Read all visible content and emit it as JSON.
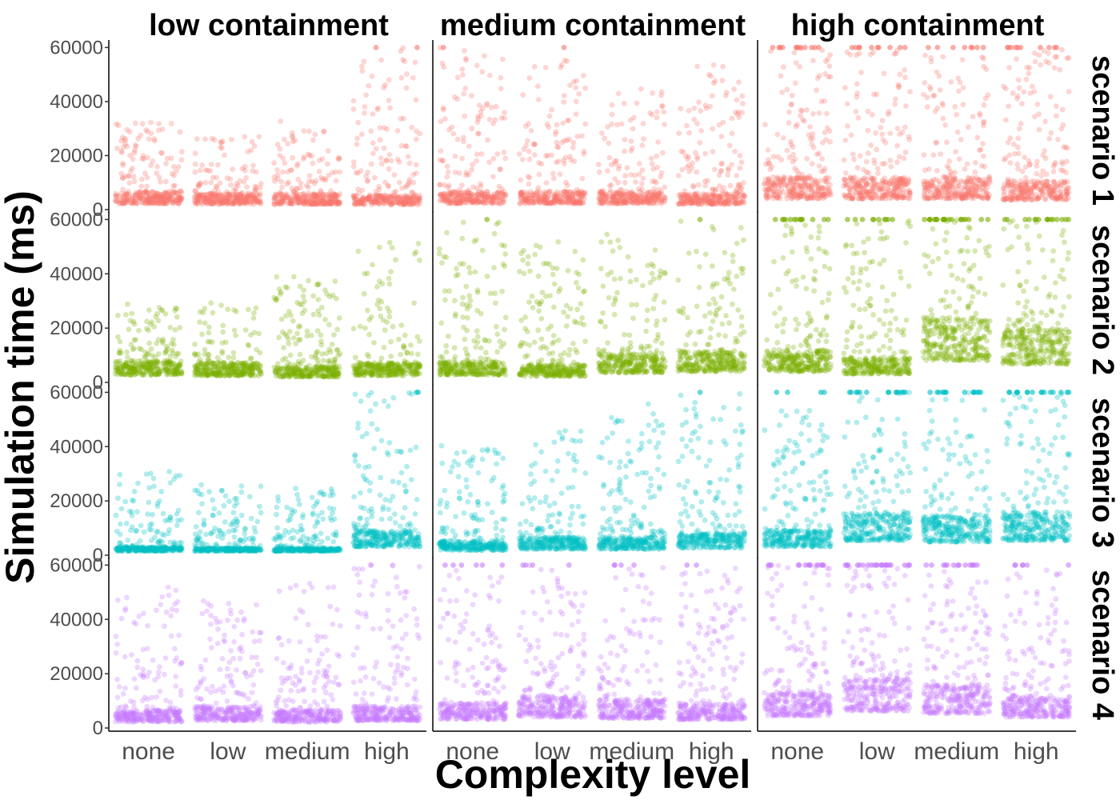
{
  "chart_data": {
    "type": "scatter",
    "xlabel": "Complexity level",
    "ylabel": "Simulation time (ms)",
    "categories": [
      "none",
      "low",
      "medium",
      "high"
    ],
    "ylim": [
      0,
      61000
    ],
    "yticks": [
      0,
      20000,
      40000,
      60000
    ],
    "ytick_labels": [
      "0",
      "20000",
      "40000",
      "60000"
    ],
    "columns": [
      "low containment",
      "medium containment",
      "high containment"
    ],
    "rows": [
      {
        "label": "scenario 1",
        "color": "#F8766D"
      },
      {
        "label": "scenario 2",
        "color": "#7CAE00"
      },
      {
        "label": "scenario 3",
        "color": "#00BFC4"
      },
      {
        "label": "scenario 4",
        "color": "#C77CFF"
      }
    ],
    "point_opacity": 0.3,
    "grid": false,
    "legend": "none",
    "panels": [
      {
        "scenario": "scenario 1",
        "containment": "low containment",
        "complexity": "none",
        "median": 5000,
        "upper_max": 33000,
        "timeouts": 0
      },
      {
        "scenario": "scenario 1",
        "containment": "low containment",
        "complexity": "low",
        "median": 4500,
        "upper_max": 27000,
        "timeouts": 0
      },
      {
        "scenario": "scenario 1",
        "containment": "low containment",
        "complexity": "medium",
        "median": 4500,
        "upper_max": 33000,
        "timeouts": 0
      },
      {
        "scenario": "scenario 1",
        "containment": "low containment",
        "complexity": "high",
        "median": 4000,
        "upper_max": 60000,
        "timeouts": 2
      },
      {
        "scenario": "scenario 1",
        "containment": "medium containment",
        "complexity": "none",
        "median": 5000,
        "upper_max": 60000,
        "timeouts": 1
      },
      {
        "scenario": "scenario 1",
        "containment": "medium containment",
        "complexity": "low",
        "median": 5000,
        "upper_max": 60000,
        "timeouts": 1
      },
      {
        "scenario": "scenario 1",
        "containment": "medium containment",
        "complexity": "medium",
        "median": 5000,
        "upper_max": 45000,
        "timeouts": 0
      },
      {
        "scenario": "scenario 1",
        "containment": "medium containment",
        "complexity": "high",
        "median": 4500,
        "upper_max": 54000,
        "timeouts": 0
      },
      {
        "scenario": "scenario 1",
        "containment": "high containment",
        "complexity": "none",
        "median": 9000,
        "upper_max": 60000,
        "timeouts": 12
      },
      {
        "scenario": "scenario 1",
        "containment": "high containment",
        "complexity": "low",
        "median": 9000,
        "upper_max": 60000,
        "timeouts": 10
      },
      {
        "scenario": "scenario 1",
        "containment": "high containment",
        "complexity": "medium",
        "median": 9000,
        "upper_max": 60000,
        "timeouts": 8
      },
      {
        "scenario": "scenario 1",
        "containment": "high containment",
        "complexity": "high",
        "median": 8000,
        "upper_max": 60000,
        "timeouts": 10
      },
      {
        "scenario": "scenario 2",
        "containment": "low containment",
        "complexity": "none",
        "median": 6000,
        "upper_max": 29000,
        "timeouts": 0
      },
      {
        "scenario": "scenario 2",
        "containment": "low containment",
        "complexity": "low",
        "median": 5500,
        "upper_max": 30000,
        "timeouts": 0
      },
      {
        "scenario": "scenario 2",
        "containment": "low containment",
        "complexity": "medium",
        "median": 4500,
        "upper_max": 39000,
        "timeouts": 0
      },
      {
        "scenario": "scenario 2",
        "containment": "low containment",
        "complexity": "high",
        "median": 5500,
        "upper_max": 53000,
        "timeouts": 0
      },
      {
        "scenario": "scenario 2",
        "containment": "medium containment",
        "complexity": "none",
        "median": 6000,
        "upper_max": 60000,
        "timeouts": 1
      },
      {
        "scenario": "scenario 2",
        "containment": "medium containment",
        "complexity": "low",
        "median": 5000,
        "upper_max": 52000,
        "timeouts": 0
      },
      {
        "scenario": "scenario 2",
        "containment": "medium containment",
        "complexity": "medium",
        "median": 8000,
        "upper_max": 56000,
        "timeouts": 0
      },
      {
        "scenario": "scenario 2",
        "containment": "medium containment",
        "complexity": "high",
        "median": 9000,
        "upper_max": 60000,
        "timeouts": 1
      },
      {
        "scenario": "scenario 2",
        "containment": "high containment",
        "complexity": "none",
        "median": 9000,
        "upper_max": 60000,
        "timeouts": 14
      },
      {
        "scenario": "scenario 2",
        "containment": "high containment",
        "complexity": "low",
        "median": 7000,
        "upper_max": 60000,
        "timeouts": 10
      },
      {
        "scenario": "scenario 2",
        "containment": "high containment",
        "complexity": "medium",
        "median": 18000,
        "upper_max": 60000,
        "timeouts": 22
      },
      {
        "scenario": "scenario 2",
        "containment": "high containment",
        "complexity": "high",
        "median": 15000,
        "upper_max": 60000,
        "timeouts": 16
      },
      {
        "scenario": "scenario 3",
        "containment": "low containment",
        "complexity": "none",
        "median": 2500,
        "upper_max": 31000,
        "timeouts": 0
      },
      {
        "scenario": "scenario 3",
        "containment": "low containment",
        "complexity": "low",
        "median": 2200,
        "upper_max": 27000,
        "timeouts": 0
      },
      {
        "scenario": "scenario 3",
        "containment": "low containment",
        "complexity": "medium",
        "median": 2200,
        "upper_max": 25000,
        "timeouts": 0
      },
      {
        "scenario": "scenario 3",
        "containment": "low containment",
        "complexity": "high",
        "median": 7000,
        "upper_max": 60000,
        "timeouts": 2
      },
      {
        "scenario": "scenario 3",
        "containment": "medium containment",
        "complexity": "none",
        "median": 4000,
        "upper_max": 42000,
        "timeouts": 0
      },
      {
        "scenario": "scenario 3",
        "containment": "medium containment",
        "complexity": "low",
        "median": 5000,
        "upper_max": 46000,
        "timeouts": 0
      },
      {
        "scenario": "scenario 3",
        "containment": "medium containment",
        "complexity": "medium",
        "median": 5000,
        "upper_max": 56000,
        "timeouts": 0
      },
      {
        "scenario": "scenario 3",
        "containment": "medium containment",
        "complexity": "high",
        "median": 6000,
        "upper_max": 60000,
        "timeouts": 1
      },
      {
        "scenario": "scenario 3",
        "containment": "high containment",
        "complexity": "none",
        "median": 7000,
        "upper_max": 60000,
        "timeouts": 4
      },
      {
        "scenario": "scenario 3",
        "containment": "high containment",
        "complexity": "low",
        "median": 12000,
        "upper_max": 60000,
        "timeouts": 14
      },
      {
        "scenario": "scenario 3",
        "containment": "high containment",
        "complexity": "medium",
        "median": 11000,
        "upper_max": 60000,
        "timeouts": 14
      },
      {
        "scenario": "scenario 3",
        "containment": "high containment",
        "complexity": "high",
        "median": 12000,
        "upper_max": 60000,
        "timeouts": 16
      },
      {
        "scenario": "scenario 4",
        "containment": "low containment",
        "complexity": "none",
        "median": 5000,
        "upper_max": 54000,
        "timeouts": 0
      },
      {
        "scenario": "scenario 4",
        "containment": "low containment",
        "complexity": "low",
        "median": 6000,
        "upper_max": 48000,
        "timeouts": 0
      },
      {
        "scenario": "scenario 4",
        "containment": "low containment",
        "complexity": "medium",
        "median": 5000,
        "upper_max": 54000,
        "timeouts": 0
      },
      {
        "scenario": "scenario 4",
        "containment": "low containment",
        "complexity": "high",
        "median": 6000,
        "upper_max": 60000,
        "timeouts": 1
      },
      {
        "scenario": "scenario 4",
        "containment": "medium containment",
        "complexity": "none",
        "median": 7000,
        "upper_max": 60000,
        "timeouts": 6
      },
      {
        "scenario": "scenario 4",
        "containment": "medium containment",
        "complexity": "low",
        "median": 9000,
        "upper_max": 60000,
        "timeouts": 4
      },
      {
        "scenario": "scenario 4",
        "containment": "medium containment",
        "complexity": "medium",
        "median": 8000,
        "upper_max": 60000,
        "timeouts": 4
      },
      {
        "scenario": "scenario 4",
        "containment": "medium containment",
        "complexity": "high",
        "median": 7000,
        "upper_max": 60000,
        "timeouts": 2
      },
      {
        "scenario": "scenario 4",
        "containment": "high containment",
        "complexity": "none",
        "median": 10000,
        "upper_max": 60000,
        "timeouts": 14
      },
      {
        "scenario": "scenario 4",
        "containment": "high containment",
        "complexity": "low",
        "median": 14000,
        "upper_max": 60000,
        "timeouts": 22
      },
      {
        "scenario": "scenario 4",
        "containment": "high containment",
        "complexity": "medium",
        "median": 12000,
        "upper_max": 60000,
        "timeouts": 14
      },
      {
        "scenario": "scenario 4",
        "containment": "high containment",
        "complexity": "high",
        "median": 9000,
        "upper_max": 60000,
        "timeouts": 6
      }
    ]
  }
}
